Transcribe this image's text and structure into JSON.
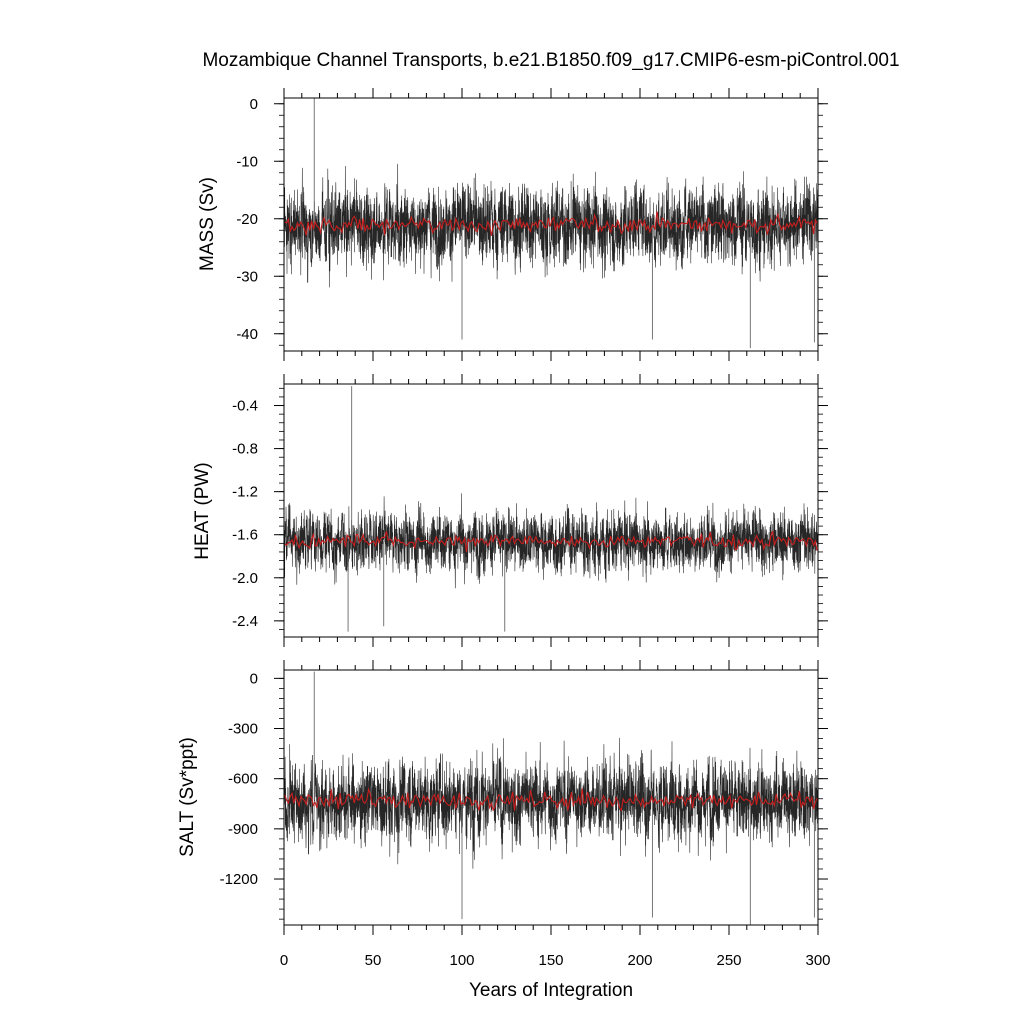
{
  "chart_data": [
    {
      "type": "line",
      "title": "Mozambique Channel Transports, b.e21.B1850.f09_g17.CMIP6-esm-piControl.001",
      "ylabel": "MASS (Sv)",
      "xlabel": "",
      "xlim": [
        0,
        300
      ],
      "ylim": [
        -43,
        1
      ],
      "yticks": [
        0,
        -10,
        -20,
        -30,
        -40
      ],
      "ytick_labels": [
        "0",
        "-10",
        "-20",
        "-30",
        "-40"
      ],
      "series": [
        {
          "kind": "monthly",
          "color": "#000000",
          "mean": -21,
          "spread": 5.5,
          "min": -42.5,
          "max": 1
        },
        {
          "kind": "annual_mean",
          "color": "#c81e1e",
          "mean": -21,
          "spread": 1.3
        }
      ],
      "extremes": [
        {
          "x": 17,
          "y": 1
        },
        {
          "x": 100,
          "y": -41
        },
        {
          "x": 207,
          "y": -41
        },
        {
          "x": 262,
          "y": -42.5
        },
        {
          "x": 298,
          "y": -41.5
        }
      ]
    },
    {
      "type": "line",
      "title": "",
      "ylabel": "HEAT (PW)",
      "xlabel": "",
      "xlim": [
        0,
        300
      ],
      "ylim": [
        -2.55,
        -0.2
      ],
      "yticks": [
        -0.4,
        -0.8,
        -1.2,
        -1.6,
        -2.0,
        -2.4
      ],
      "ytick_labels": [
        "-0.4",
        "-0.8",
        "-1.2",
        "-1.6",
        "-2.0",
        "-2.4"
      ],
      "series": [
        {
          "kind": "monthly",
          "color": "#000000",
          "mean": -1.66,
          "spread": 0.22,
          "min": -2.55,
          "max": -0.22
        },
        {
          "kind": "annual_mean",
          "color": "#c81e1e",
          "mean": -1.66,
          "spread": 0.06
        }
      ],
      "extremes": [
        {
          "x": 38,
          "y": -0.22
        },
        {
          "x": 36,
          "y": -2.5
        },
        {
          "x": 56,
          "y": -2.45
        },
        {
          "x": 124,
          "y": -2.5
        }
      ]
    },
    {
      "type": "line",
      "title": "",
      "ylabel": "SALT (Sv*ppt)",
      "xlabel": "Years of Integration",
      "xlim": [
        0,
        300
      ],
      "ylim": [
        -1475,
        50
      ],
      "xticks": [
        0,
        50,
        100,
        150,
        200,
        250,
        300
      ],
      "xtick_labels": [
        "0",
        "50",
        "100",
        "150",
        "200",
        "250",
        "300"
      ],
      "yticks": [
        0,
        -300,
        -600,
        -900,
        -1200
      ],
      "ytick_labels": [
        "0",
        "-300",
        "-600",
        "-900",
        "-1200"
      ],
      "series": [
        {
          "kind": "monthly",
          "color": "#000000",
          "mean": -730,
          "spread": 190,
          "min": -1475,
          "max": 40
        },
        {
          "kind": "annual_mean",
          "color": "#c81e1e",
          "mean": -730,
          "spread": 45
        }
      ],
      "extremes": [
        {
          "x": 17,
          "y": 40
        },
        {
          "x": 100,
          "y": -1440
        },
        {
          "x": 207,
          "y": -1430
        },
        {
          "x": 262,
          "y": -1475
        },
        {
          "x": 298,
          "y": -1430
        }
      ]
    }
  ]
}
